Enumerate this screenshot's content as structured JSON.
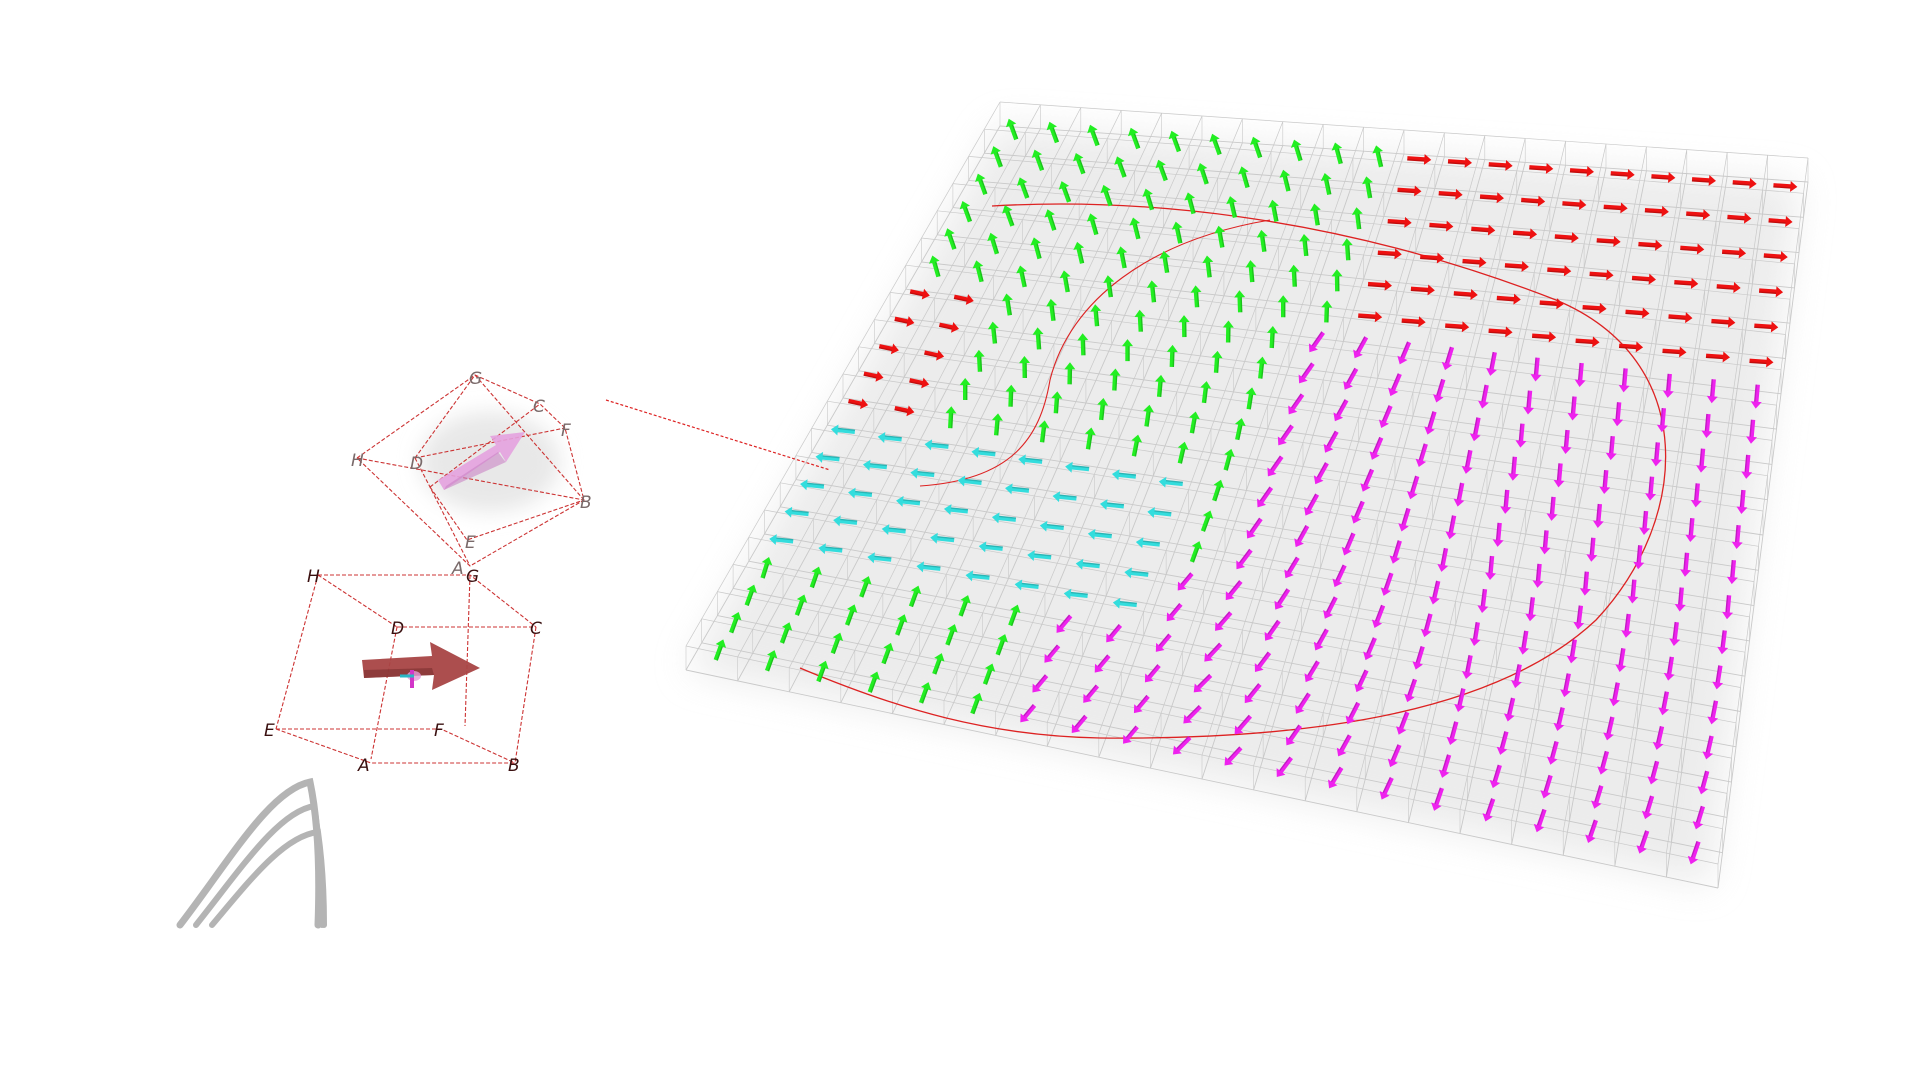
{
  "source_cell": {
    "vertex_labels": [
      "H",
      "G",
      "D",
      "C",
      "E",
      "F",
      "A",
      "B"
    ]
  },
  "target_cell": {
    "vertex_labels": [
      "G",
      "C",
      "F",
      "H",
      "D",
      "B",
      "E",
      "A"
    ]
  },
  "colors": {
    "red": "#ee1111",
    "green": "#22ee22",
    "magenta": "#ee22ee",
    "cyan": "#33dddd",
    "grid": "#c9c9c9",
    "curve": "#dd2222",
    "source_arrow": "#a84848",
    "target_arrow": "#e8a4e4",
    "logo": "#b4b4b4"
  },
  "icons": {
    "logo": "curved-ribbon-logo-icon",
    "source_arrow": "vector-arrow-icon",
    "target_arrow": "vector-arrow-icon"
  }
}
